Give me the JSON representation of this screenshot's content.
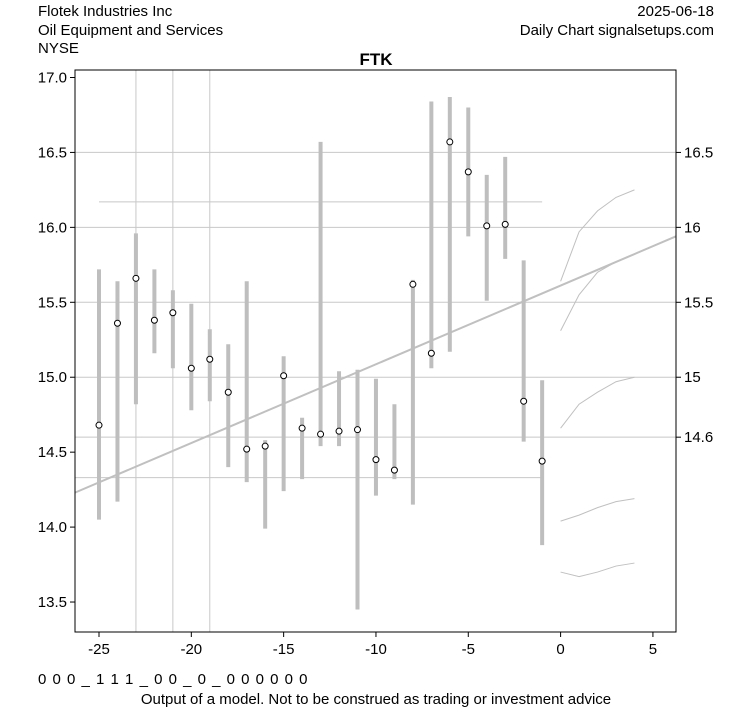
{
  "header": {
    "left": [
      "Flotek Industries Inc",
      "Oil Equipment and Services",
      "NYSE"
    ],
    "right": [
      "2025-06-18",
      "Daily Chart signalsetups.com"
    ]
  },
  "chart_data": {
    "type": "range",
    "title": "FTK",
    "xlim": [
      -26.3,
      6.25
    ],
    "ylim": [
      13.3,
      17.05
    ],
    "y2lim": [
      13.3,
      17.05
    ],
    "xticks": [
      -25,
      -20,
      -15,
      -10,
      -5,
      0,
      5
    ],
    "yticks": [
      {
        "value": 17,
        "label": "17.0"
      },
      {
        "value": 16.5,
        "label": "16.5"
      },
      {
        "value": 16,
        "label": "16.0"
      },
      {
        "value": 15.5,
        "label": "15.5"
      },
      {
        "value": 15,
        "label": "15.0"
      },
      {
        "value": 14.5,
        "label": "14.5"
      },
      {
        "value": 14,
        "label": "14.0"
      },
      {
        "value": 13.5,
        "label": "13.5"
      }
    ],
    "y2ticks": [
      16.5,
      16,
      15.5,
      15,
      14.6
    ],
    "vlines": [
      -23,
      -21,
      -19
    ],
    "hlines": [
      {
        "value": 16.17,
        "x": [
          -25,
          -1
        ]
      },
      {
        "value": 14.33,
        "x": [
          -26.3,
          -1
        ]
      }
    ],
    "x": [
      -25,
      -24,
      -23,
      -22,
      -21,
      -20,
      -19,
      -18,
      -17,
      -16,
      -15,
      -14,
      -13,
      -12,
      -11,
      -10,
      -9,
      -8,
      -7,
      -6,
      -5,
      -4,
      -3,
      -2,
      -1
    ],
    "high": [
      15.72,
      15.64,
      15.96,
      15.72,
      15.58,
      15.49,
      15.32,
      15.22,
      15.64,
      14.58,
      15.14,
      14.73,
      16.57,
      15.04,
      15.05,
      14.99,
      14.82,
      15.65,
      16.84,
      16.87,
      16.8,
      16.35,
      16.47,
      15.78,
      14.98
    ],
    "low": [
      14.05,
      14.17,
      14.82,
      15.16,
      15.06,
      14.78,
      14.84,
      14.4,
      14.3,
      13.99,
      14.24,
      14.32,
      14.54,
      14.54,
      13.45,
      14.21,
      14.32,
      14.15,
      15.06,
      15.17,
      15.94,
      15.51,
      15.79,
      14.57,
      13.88
    ],
    "close": [
      14.68,
      15.36,
      15.66,
      15.38,
      15.43,
      15.06,
      15.12,
      14.9,
      14.52,
      14.54,
      15.01,
      14.66,
      14.62,
      14.64,
      14.65,
      14.45,
      14.38,
      15.62,
      15.16,
      16.57,
      16.37,
      16.01,
      16.02,
      14.84,
      14.44
    ],
    "trend": {
      "x": [
        -26.3,
        6.25
      ],
      "y": [
        14.23,
        15.94
      ]
    },
    "projection_x": [
      0,
      1,
      2,
      3,
      4
    ],
    "projections": [
      [
        15.64,
        15.97,
        16.11,
        16.2,
        16.25
      ],
      [
        15.31,
        15.55,
        15.7,
        15.77,
        15.82
      ],
      [
        14.66,
        14.82,
        14.9,
        14.97,
        15.0
      ],
      [
        14.04,
        14.08,
        14.13,
        14.17,
        14.19
      ],
      [
        13.7,
        13.67,
        13.7,
        13.74,
        13.76
      ]
    ],
    "bar_color": "#bebebe",
    "line_color": "#c0c0c0",
    "grid_color": "#c8c8c8"
  },
  "footer": {
    "code": "0 0 0 _ 1 1 1 _ 0 0 _ 0 _ 0 0 0 0 0 0",
    "note": "Output of a model. Not to be construed as trading or investment advice"
  }
}
